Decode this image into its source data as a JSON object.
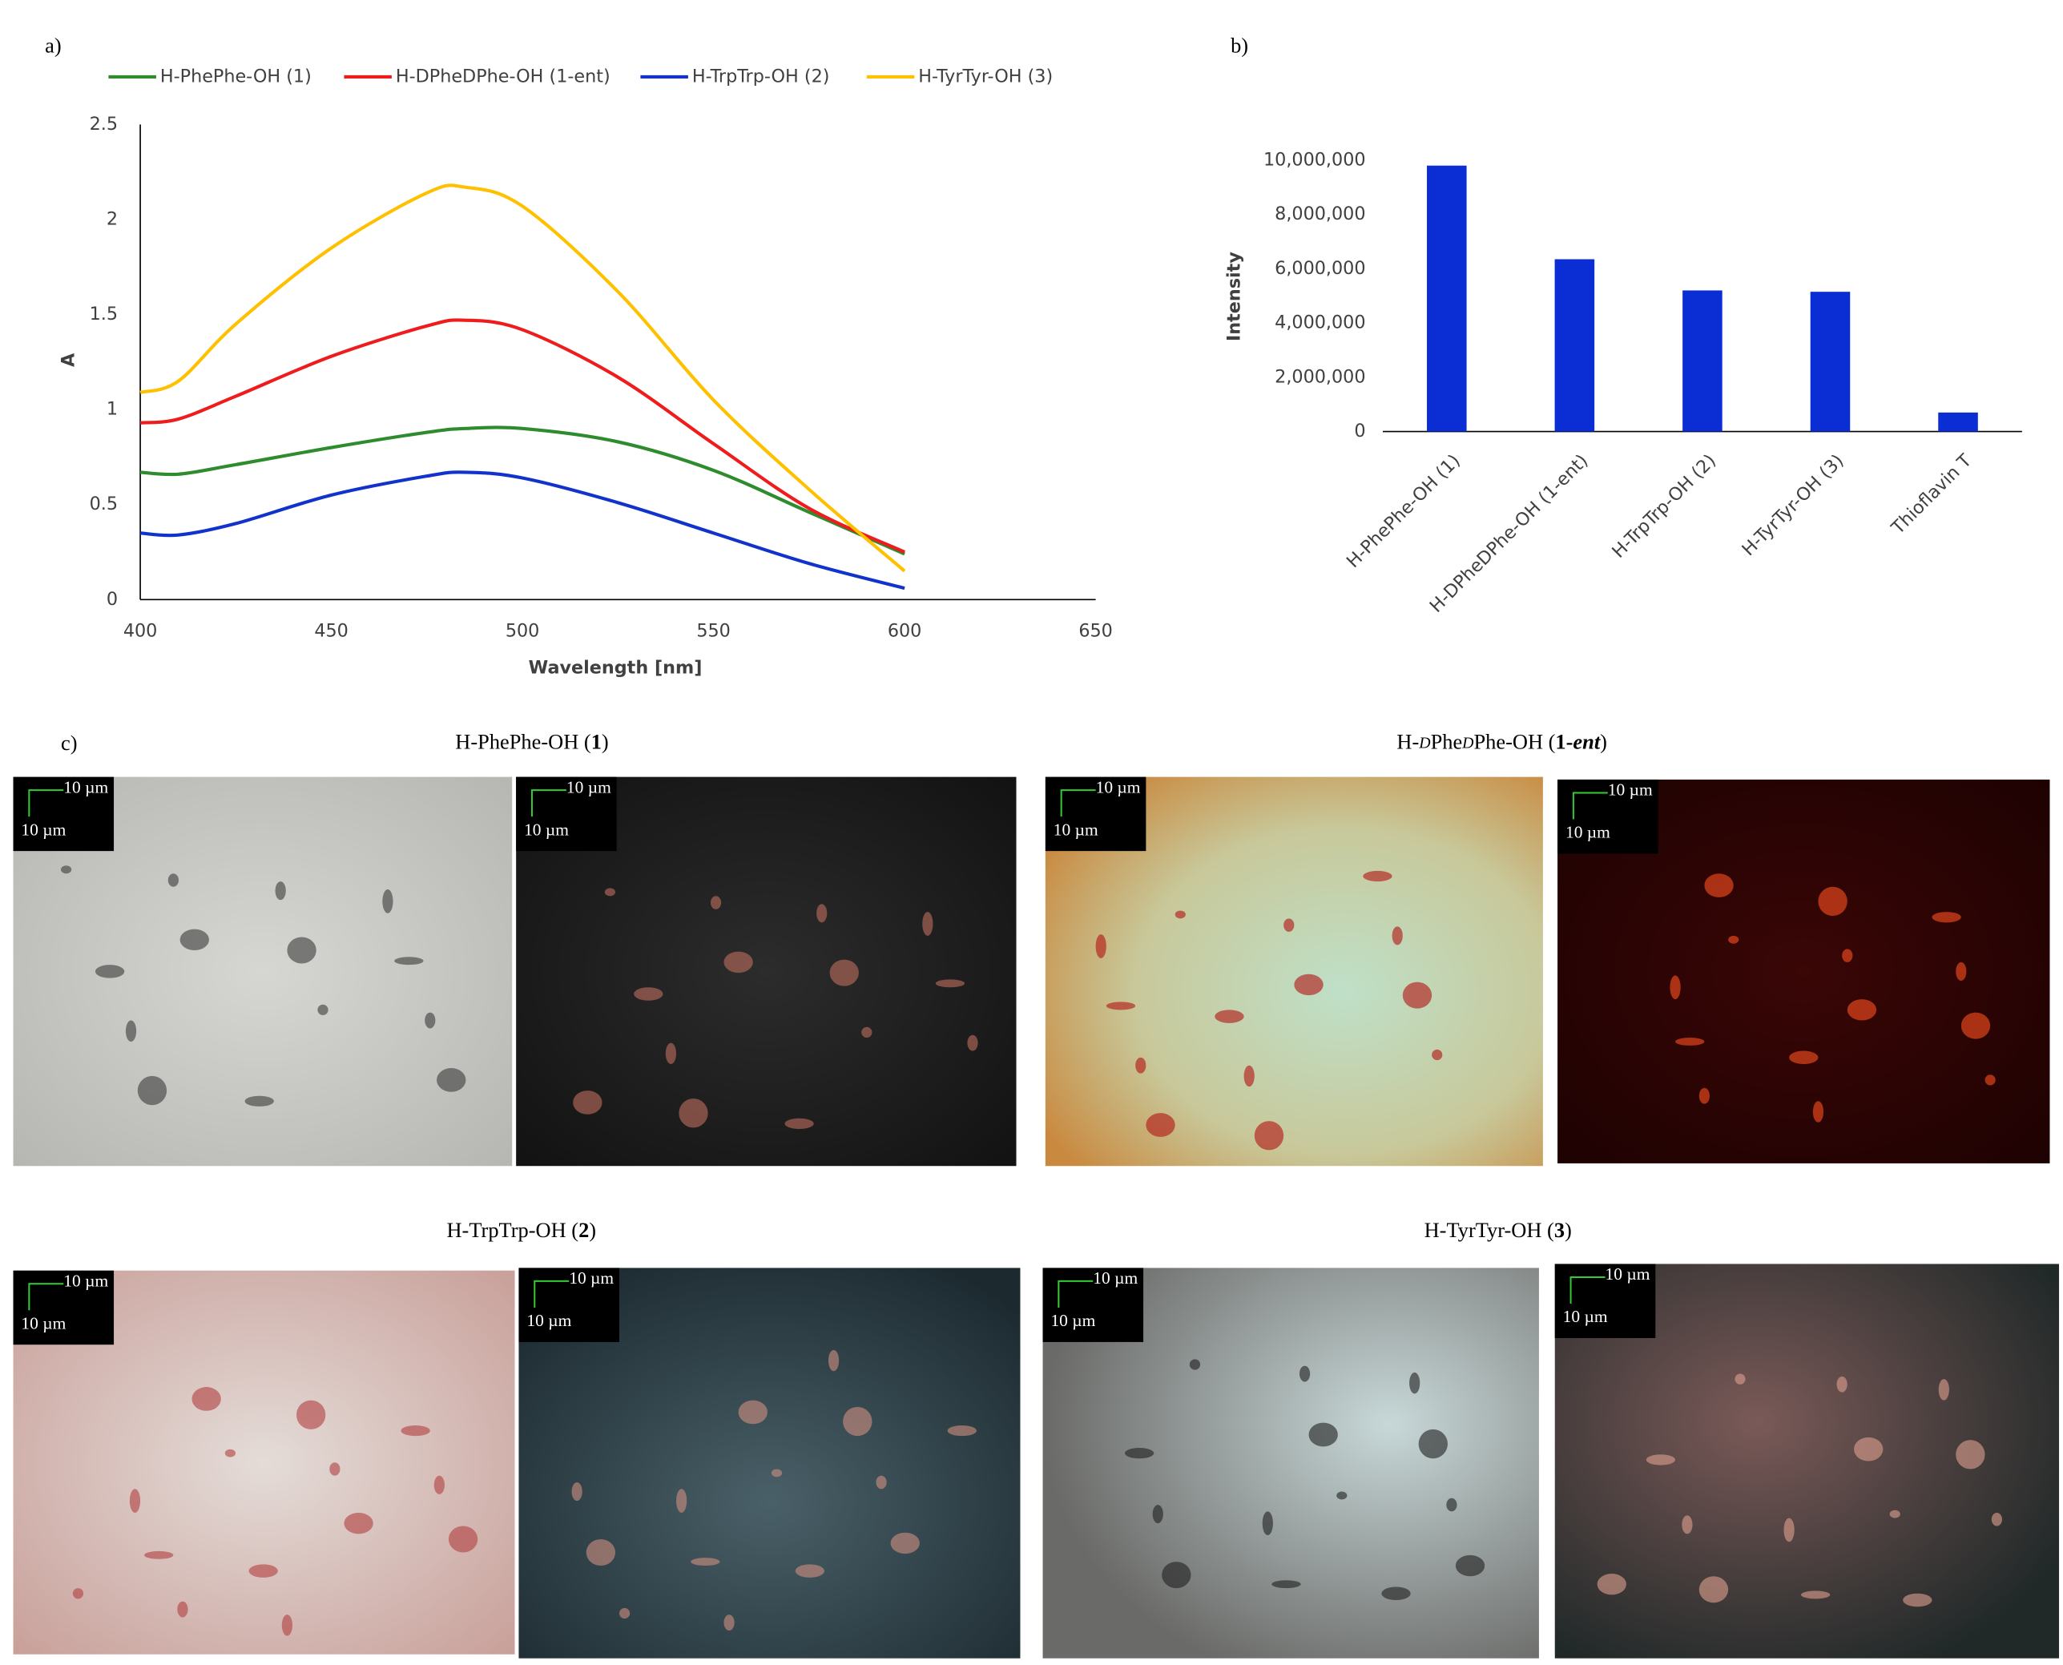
{
  "panel_labels": [
    "a)",
    "b)",
    "c)"
  ],
  "chart_data": [
    {
      "type": "line",
      "xlabel": "Wavelength [nm]",
      "ylabel": "A",
      "x": [
        400,
        410,
        425,
        450,
        475,
        485,
        500,
        525,
        550,
        575,
        600
      ],
      "series": [
        {
          "name": "H-PhePhe-OH (1)",
          "color": "#2e8b2e",
          "values": [
            0.67,
            0.66,
            0.71,
            0.8,
            0.88,
            0.9,
            0.9,
            0.83,
            0.68,
            0.46,
            0.24
          ]
        },
        {
          "name": "H-DPheDPhe-OH (1-ent)",
          "color": "#ee1c1c",
          "values": [
            0.93,
            0.95,
            1.07,
            1.28,
            1.44,
            1.47,
            1.42,
            1.17,
            0.82,
            0.48,
            0.25
          ]
        },
        {
          "name": "H-TrpTrp-OH (2)",
          "color": "#1133cc",
          "values": [
            0.35,
            0.34,
            0.4,
            0.55,
            0.65,
            0.67,
            0.64,
            0.51,
            0.35,
            0.19,
            0.06
          ]
        },
        {
          "name": "H-TyrTyr-OH (3)",
          "color": "#ffc000",
          "values": [
            1.09,
            1.15,
            1.45,
            1.85,
            2.14,
            2.17,
            2.07,
            1.62,
            1.05,
            0.58,
            0.15
          ]
        }
      ],
      "xlim": [
        400,
        650
      ],
      "xticks": [
        400,
        450,
        500,
        550,
        600,
        650
      ],
      "ylim": [
        0,
        2.5
      ],
      "yticks": [
        0,
        0.5,
        1,
        1.5,
        2,
        2.5
      ],
      "grid": false,
      "legend": "top"
    },
    {
      "type": "bar",
      "ylabel": "Intensity",
      "color": "#0a2ed4",
      "categories": [
        "H-PhePhe-OH (1)",
        "H-DPheDPhe-OH (1-ent)",
        "H-TrpTrp-OH (2)",
        "H-TyrTyr-OH (3)",
        "Thioflavin T"
      ],
      "values": [
        9800000,
        6350000,
        5200000,
        5150000,
        700000
      ],
      "ylim": [
        0,
        10000000
      ],
      "yticks": [
        0,
        {
          "value": 2000000,
          "label": "2,000,000"
        },
        {
          "value": 4000000,
          "label": "4,000,000"
        },
        {
          "value": 6000000,
          "label": "6,000,000"
        },
        {
          "value": 8000000,
          "label": "8,000,000"
        },
        {
          "value": 10000000,
          "label": "10,000,000"
        }
      ],
      "grid": false
    }
  ],
  "micrographs": [
    {
      "title": [
        "H-PhePhe-OH (",
        "1",
        ")"
      ],
      "images": [
        [
          "10 µm",
          "10 µm"
        ],
        [
          "10 µm",
          "10 µm"
        ]
      ]
    },
    {
      "title": [
        "H-",
        "D",
        "Phe",
        "D",
        "Phe-OH (",
        "1",
        "-",
        "ent",
        ")"
      ],
      "images": [
        [
          "10 µm",
          "10 µm"
        ],
        [
          "10 µm",
          "10 µm"
        ]
      ]
    },
    {
      "title": [
        "H-TrpTrp-OH (",
        "2",
        ")"
      ],
      "images": [
        [
          "10 µm",
          "10 µm"
        ],
        [
          "10 µm",
          "10 µm"
        ]
      ]
    },
    {
      "title": [
        "H-TyrTyr-OH (",
        "3",
        ")"
      ],
      "images": [
        [
          "10 µm",
          "10 µm"
        ],
        [
          "10 µm",
          "10 µm"
        ]
      ]
    }
  ]
}
